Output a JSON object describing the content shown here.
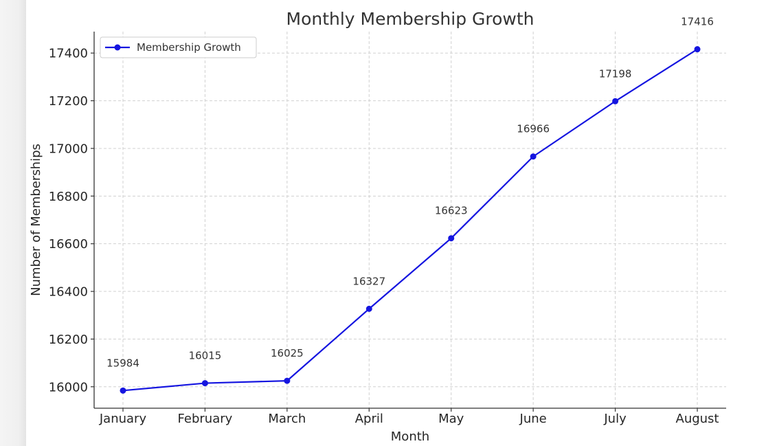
{
  "chart_data": {
    "type": "line",
    "title": "Monthly Membership Growth",
    "xlabel": "Month",
    "ylabel": "Number of Memberships",
    "categories": [
      "January",
      "February",
      "March",
      "April",
      "May",
      "June",
      "July",
      "August"
    ],
    "series": [
      {
        "name": "Membership Growth",
        "values": [
          15984,
          16015,
          16025,
          16327,
          16623,
          16966,
          17198,
          17416
        ],
        "color": "#1515e0"
      }
    ],
    "yticks": [
      16000,
      16200,
      16400,
      16600,
      16800,
      17000,
      17200,
      17400
    ],
    "ylim": [
      15910,
      17490
    ],
    "grid": true,
    "legend_position": "top-left",
    "data_labels": true
  }
}
